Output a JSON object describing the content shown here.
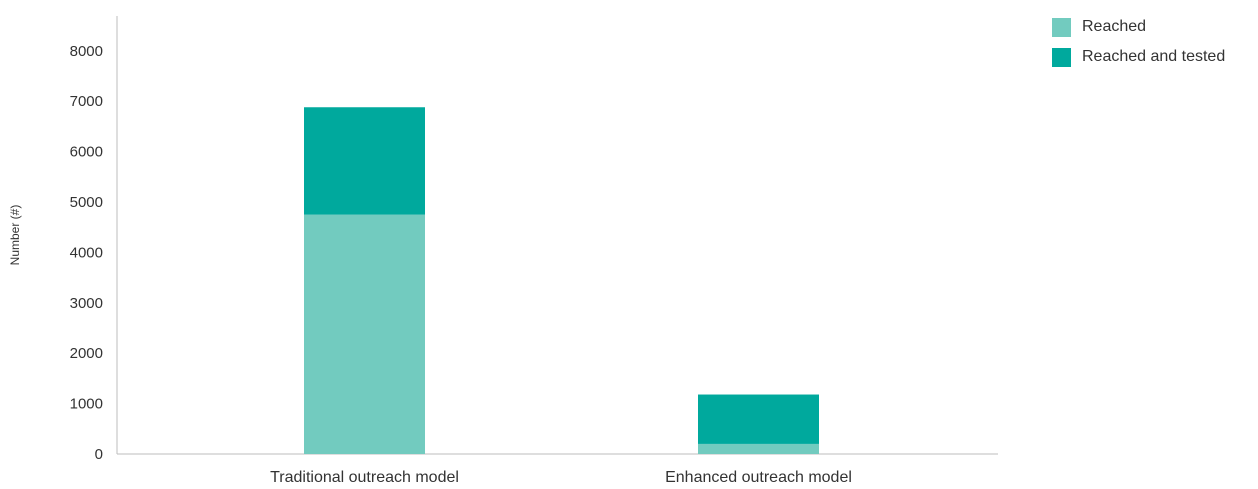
{
  "chart_data": {
    "type": "bar",
    "stacked": true,
    "categories": [
      "Traditional outreach model",
      "Enhanced outreach model"
    ],
    "series": [
      {
        "name": "Reached",
        "color": "#72cbbf",
        "values": [
          4750,
          200
        ]
      },
      {
        "name": "Reached and tested",
        "color": "#00a99d",
        "values": [
          2130,
          980
        ]
      }
    ],
    "ylabel": "Number (#)",
    "ylim": [
      0,
      8000
    ],
    "yticks": [
      0,
      1000,
      2000,
      3000,
      4000,
      5000,
      6000,
      7000,
      8000
    ],
    "grid": false,
    "legend_position": "top-right"
  }
}
